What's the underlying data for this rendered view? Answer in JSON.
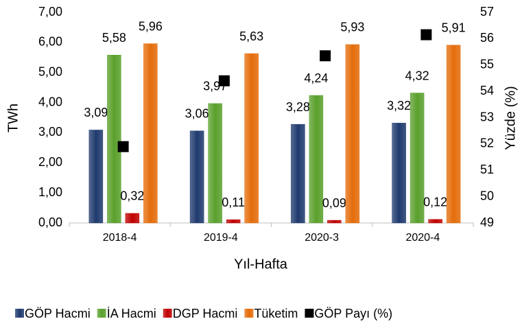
{
  "chart_data": {
    "type": "bar",
    "categories": [
      "2018-4",
      "2019-4",
      "2020-3",
      "2020-4"
    ],
    "x_label": "Yıl-Hafta",
    "y_label": "TWh",
    "y2_label": "Yüzde (%)",
    "series": [
      {
        "name": "GÖP Hacmi",
        "color": "#1f3a6e",
        "values": [
          3.09,
          3.06,
          3.28,
          3.32
        ],
        "value_labels": [
          "3,09",
          "3,06",
          "3,28",
          "3,32"
        ]
      },
      {
        "name": "İA Hacmi",
        "color": "#5aa02c",
        "values": [
          5.58,
          3.97,
          4.24,
          4.32
        ],
        "value_labels": [
          "5,58",
          "3,97",
          "4,24",
          "4,32"
        ]
      },
      {
        "name": "DGP Hacmi",
        "color": "#c00000",
        "values": [
          0.32,
          0.11,
          0.09,
          0.12
        ],
        "value_labels": [
          "0,32",
          "0,11",
          "0,09",
          "0,12"
        ]
      },
      {
        "name": "Tüketim",
        "color": "#e46c0a",
        "values": [
          5.96,
          5.63,
          5.93,
          5.91
        ],
        "value_labels": [
          "5,96",
          "5,63",
          "5,93",
          "5,91"
        ]
      },
      {
        "name": "GÖP Payı (%)",
        "color": "#000000",
        "axis": "y2",
        "values": [
          51.9,
          54.4,
          55.35,
          56.15
        ]
      }
    ],
    "ylim": [
      0,
      7
    ],
    "yticks": [
      {
        "value": 0,
        "label": "0,00"
      },
      {
        "value": 1,
        "label": "1,00"
      },
      {
        "value": 2,
        "label": "2,00"
      },
      {
        "value": 3,
        "label": "3,00"
      },
      {
        "value": 4,
        "label": "4,00"
      },
      {
        "value": 5,
        "label": "5,00"
      },
      {
        "value": 6,
        "label": "6,00"
      },
      {
        "value": 7,
        "label": "7,00"
      }
    ],
    "y2lim": [
      49,
      57
    ],
    "y2ticks": [
      49,
      50,
      51,
      52,
      53,
      54,
      55,
      56,
      57
    ],
    "legend": "bottom"
  }
}
